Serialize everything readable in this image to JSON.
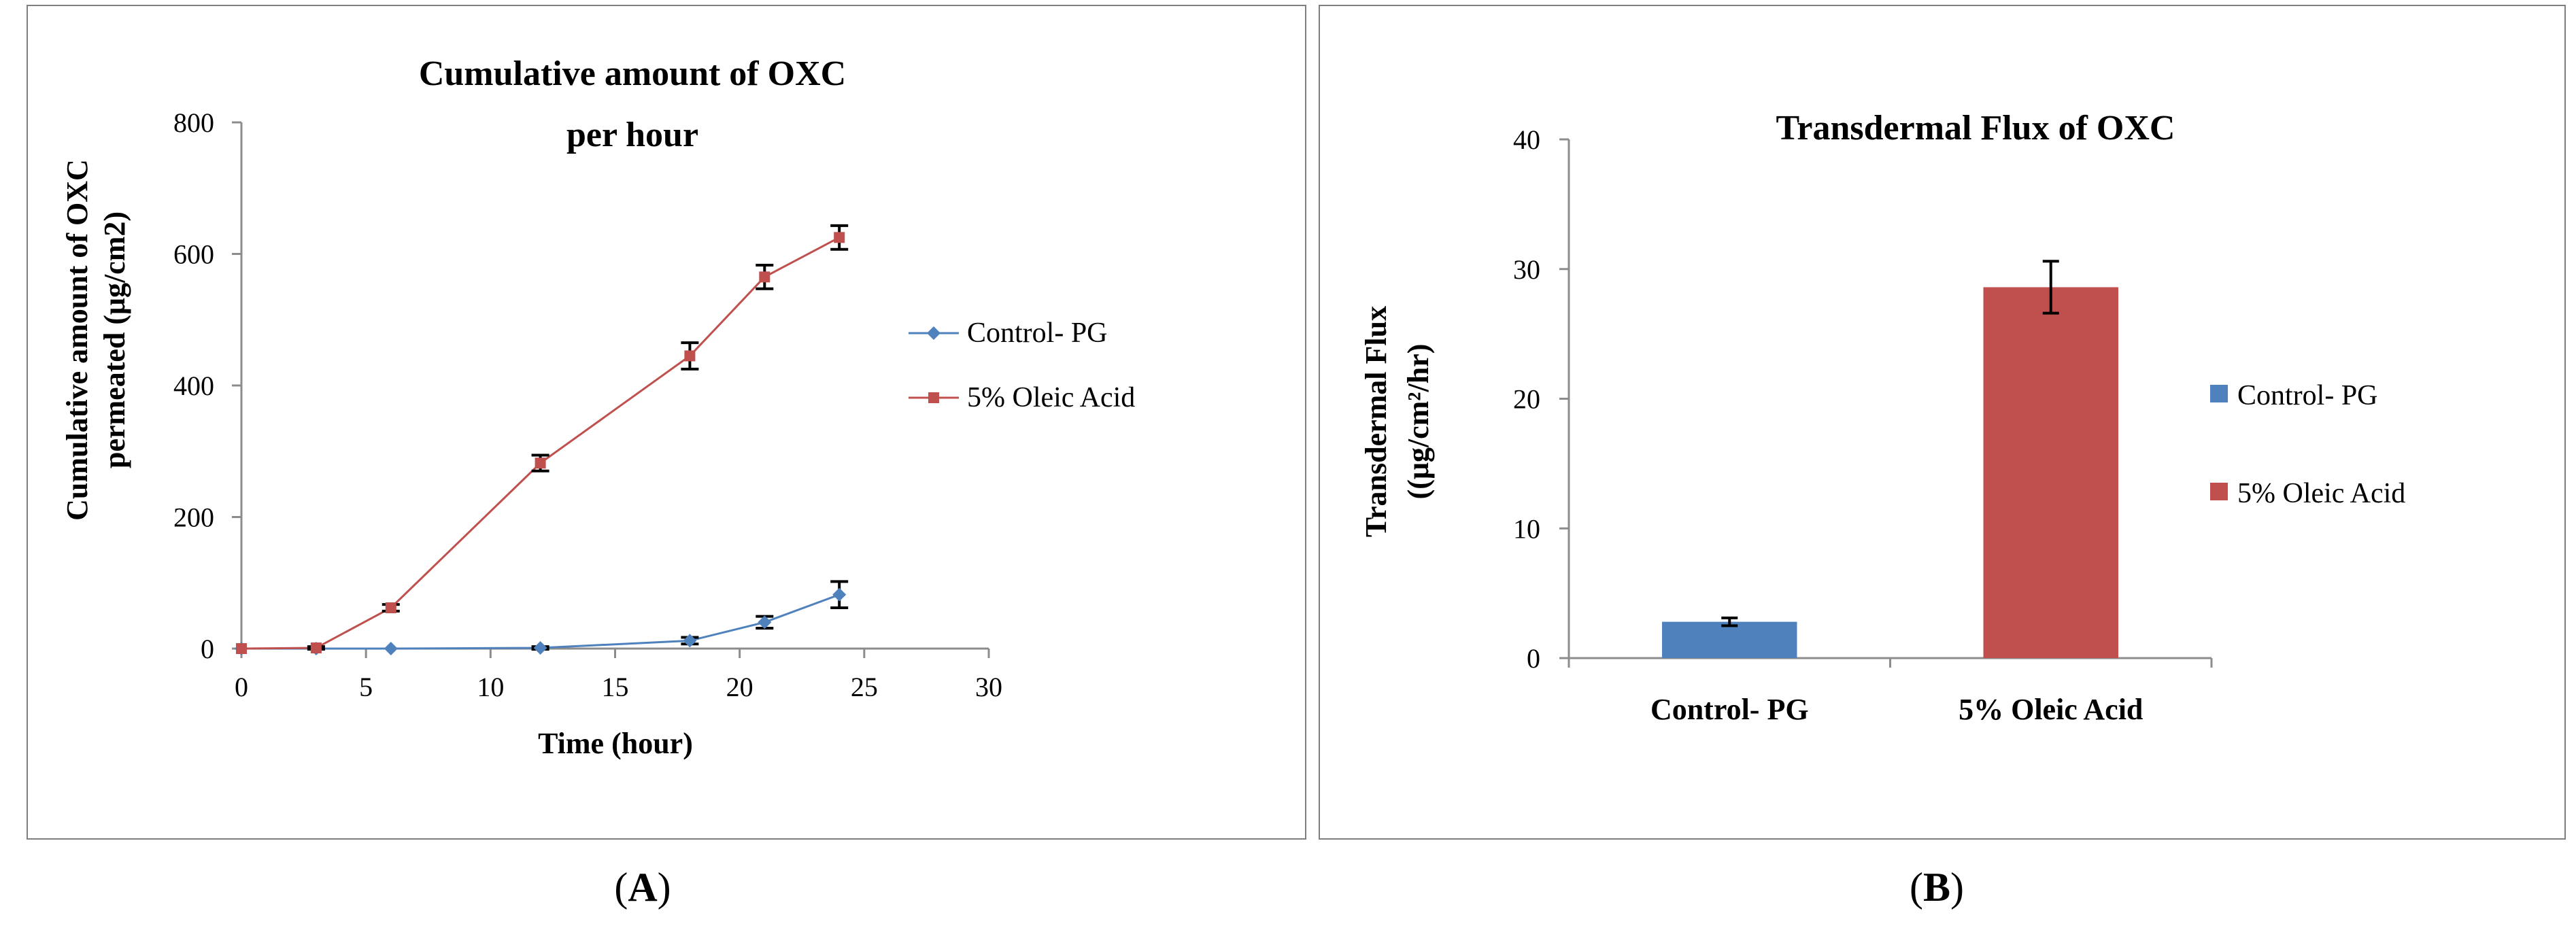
{
  "panel_labels": {
    "a": "A",
    "b": "B"
  },
  "colors": {
    "control": "#4F81BD",
    "oleic": "#C0504D",
    "axis": "#8c8c8c",
    "frame": "#7f7f7f",
    "text": "#000000"
  },
  "chart_data": [
    {
      "type": "line",
      "title_lines": [
        "Cumulative amount of OXC",
        "per hour"
      ],
      "xlabel": "Time (hour)",
      "ylabel_lines": [
        "Cumulative amount of OXC",
        "permeated (μg/cm2)"
      ],
      "xlim": [
        0,
        30
      ],
      "ylim": [
        0,
        800
      ],
      "xticks": [
        0,
        5,
        10,
        15,
        20,
        25,
        30
      ],
      "yticks": [
        0,
        200,
        400,
        600,
        800
      ],
      "grid": false,
      "legend_position": "right",
      "series": [
        {
          "name": "Control- PG",
          "marker": "diamond",
          "x": [
            0,
            3,
            6,
            12,
            18,
            21,
            24
          ],
          "y": [
            0,
            0,
            0,
            1,
            12,
            40,
            82
          ],
          "error": [
            0,
            0,
            0,
            2,
            5,
            9,
            20
          ]
        },
        {
          "name": "5% Oleic Acid",
          "marker": "square",
          "x": [
            0,
            3,
            6,
            12,
            18,
            21,
            24
          ],
          "y": [
            0,
            1,
            62,
            282,
            445,
            565,
            625
          ],
          "error": [
            0,
            2,
            5,
            12,
            20,
            18,
            18
          ]
        }
      ]
    },
    {
      "type": "bar",
      "title": "Transdermal Flux of OXC",
      "ylabel_lines": [
        "Transdermal Flux",
        "((μg/cm²/hr)"
      ],
      "categories": [
        "Control- PG",
        "5% Oleic Acid"
      ],
      "ylim": [
        0,
        40
      ],
      "yticks": [
        0,
        10,
        20,
        30,
        40
      ],
      "grid": false,
      "legend_position": "right",
      "series": [
        {
          "name": "Control- PG",
          "category": "Control- PG",
          "value": 2.8,
          "error": 0.3
        },
        {
          "name": "5% Oleic Acid",
          "category": "5% Oleic Acid",
          "value": 28.6,
          "error": 2.0
        }
      ]
    }
  ]
}
